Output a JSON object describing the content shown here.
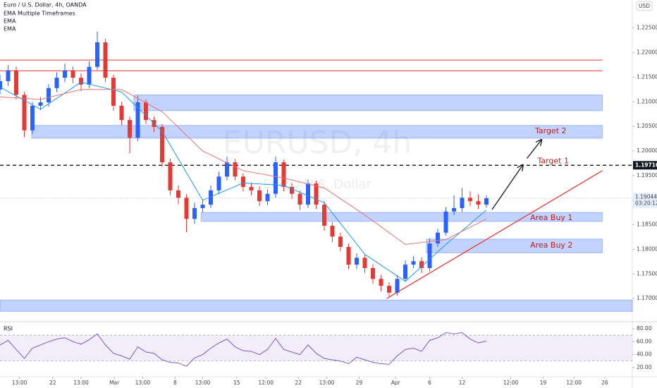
{
  "chart_data": {
    "type": "candlestick",
    "title": "Euro / U.S. Dollar, 4h, OANDA",
    "indicators": [
      "EMA Multiple Timeframes",
      "EMA",
      "EMA"
    ],
    "watermark": [
      "EURUSD, 4h",
      "Euro / U.S. Dollar"
    ],
    "currency": "USD",
    "up_color": "#2962ff",
    "down_color": "#e53935",
    "x": [
      0,
      1,
      2,
      3,
      4,
      5,
      6,
      7,
      8,
      9,
      10,
      11,
      12,
      13,
      14,
      15,
      16,
      17,
      18,
      19,
      20,
      21,
      22,
      23,
      24,
      25,
      26,
      27,
      28,
      29,
      30,
      31,
      32,
      33,
      34,
      35,
      36,
      37,
      38,
      39,
      40,
      41,
      42,
      43,
      44,
      45,
      46,
      47,
      48,
      49,
      50,
      51,
      52,
      53,
      54,
      55,
      56,
      57,
      58,
      59,
      60
    ],
    "open": [
      1.2125,
      1.2142,
      1.2164,
      1.2114,
      1.2042,
      1.2092,
      1.2099,
      1.2128,
      1.2149,
      1.2164,
      1.2149,
      1.2135,
      1.2171,
      1.2221,
      1.2149,
      1.2092,
      1.2063,
      1.2027,
      1.2099,
      1.2063,
      1.2049,
      1.1977,
      1.192,
      1.1905,
      1.1862,
      1.1884,
      1.1891,
      1.192,
      1.1948,
      1.1977,
      1.1948,
      1.1927,
      1.192,
      1.1898,
      1.1913,
      1.1977,
      1.1927,
      1.1913,
      1.1891,
      1.1934,
      1.1891,
      1.1848,
      1.1826,
      1.1805,
      1.1769,
      1.1783,
      1.1762,
      1.174,
      1.1726,
      1.1712,
      1.174,
      1.1769,
      1.1776,
      1.1762,
      1.1812,
      1.1834,
      1.1877,
      1.1884,
      1.1905,
      1.1898,
      1.1891
    ],
    "high": [
      1.2155,
      1.2175,
      1.2172,
      1.212,
      1.21,
      1.211,
      1.2136,
      1.216,
      1.2178,
      1.2172,
      1.2158,
      1.2182,
      1.2243,
      1.2228,
      1.2155,
      1.21,
      1.207,
      1.2113,
      1.2105,
      1.207,
      1.2055,
      1.1985,
      1.193,
      1.1912,
      1.1895,
      1.1902,
      1.193,
      1.1958,
      1.1989,
      1.1984,
      1.1955,
      1.1936,
      1.1928,
      1.1922,
      1.1989,
      1.1982,
      1.1935,
      1.192,
      1.1942,
      1.194,
      1.1898,
      1.1855,
      1.1834,
      1.1812,
      1.1792,
      1.179,
      1.177,
      1.1748,
      1.1733,
      1.1748,
      1.1778,
      1.1786,
      1.1784,
      1.1822,
      1.1842,
      1.1886,
      1.191,
      1.1925,
      1.1918,
      1.1912,
      1.191
    ],
    "low": [
      1.2115,
      1.2132,
      1.2105,
      1.2028,
      1.2035,
      1.2083,
      1.209,
      1.212,
      1.214,
      1.2138,
      1.2122,
      1.2128,
      1.2165,
      1.214,
      1.2082,
      1.2052,
      1.1995,
      1.202,
      1.2055,
      1.2038,
      1.1968,
      1.191,
      1.1892,
      1.1835,
      1.1852,
      1.1875,
      1.1884,
      1.1912,
      1.194,
      1.194,
      1.1918,
      1.191,
      1.1888,
      1.189,
      1.1905,
      1.1918,
      1.1902,
      1.188,
      1.1884,
      1.1882,
      1.1838,
      1.1815,
      1.1796,
      1.176,
      1.176,
      1.1752,
      1.173,
      1.1715,
      1.1704,
      1.1706,
      1.1734,
      1.1762,
      1.1752,
      1.1755,
      1.1805,
      1.1828,
      1.187,
      1.1876,
      1.1888,
      1.1882,
      1.1885
    ],
    "close": [
      1.2142,
      1.2164,
      1.2114,
      1.2042,
      1.2092,
      1.2099,
      1.2128,
      1.2149,
      1.2164,
      1.2149,
      1.2135,
      1.2171,
      1.2221,
      1.2149,
      1.2092,
      1.2063,
      1.2027,
      1.2099,
      1.2063,
      1.2049,
      1.1977,
      1.192,
      1.1905,
      1.1862,
      1.1884,
      1.1891,
      1.192,
      1.1948,
      1.1977,
      1.1948,
      1.1927,
      1.192,
      1.1898,
      1.1913,
      1.1977,
      1.1927,
      1.1913,
      1.1891,
      1.1934,
      1.1891,
      1.1848,
      1.1826,
      1.1805,
      1.1769,
      1.1783,
      1.1762,
      1.174,
      1.1726,
      1.1712,
      1.174,
      1.1769,
      1.1776,
      1.1762,
      1.1812,
      1.1834,
      1.1877,
      1.1884,
      1.1905,
      1.1898,
      1.1891,
      1.1904
    ],
    "series": [
      {
        "name": "EMA",
        "color": "#2196f3",
        "x": [
          0,
          5,
          10,
          15,
          20,
          25,
          30,
          35,
          40,
          45,
          50,
          55,
          60
        ],
        "values": [
          1.213,
          1.2085,
          1.214,
          1.212,
          1.204,
          1.19,
          1.1935,
          1.193,
          1.1895,
          1.179,
          1.1735,
          1.181,
          1.188
        ]
      },
      {
        "name": "EMA",
        "color": "#e57373",
        "x": [
          0,
          5,
          10,
          15,
          20,
          25,
          30,
          35,
          40,
          45,
          50,
          55,
          60
        ],
        "values": [
          1.211,
          1.2105,
          1.2125,
          1.2125,
          1.208,
          1.2,
          1.196,
          1.1945,
          1.1925,
          1.187,
          1.181,
          1.182,
          1.1862
        ]
      }
    ],
    "xlim": [
      0,
      78
    ],
    "xticks": [
      {
        "value": 2.4,
        "label": "13:00"
      },
      {
        "value": 6.5,
        "label": "22"
      },
      {
        "value": 10,
        "label": "13:00"
      },
      {
        "value": 14.1,
        "label": "Mar"
      },
      {
        "value": 17.6,
        "label": "13:00"
      },
      {
        "value": 21.6,
        "label": "8"
      },
      {
        "value": 25,
        "label": "13:00"
      },
      {
        "value": 29.2,
        "label": "15"
      },
      {
        "value": 32.8,
        "label": "12:00"
      },
      {
        "value": 36.8,
        "label": "22"
      },
      {
        "value": 40.3,
        "label": "13:00"
      },
      {
        "value": 44.3,
        "label": "29"
      },
      {
        "value": 48.8,
        "label": "Apr"
      },
      {
        "value": 53,
        "label": "6"
      },
      {
        "value": 57,
        "label": "12"
      },
      {
        "value": 63,
        "label": "12:00"
      },
      {
        "value": 67,
        "label": "19"
      },
      {
        "value": 70.8,
        "label": "12:00"
      },
      {
        "value": 74.6,
        "label": "26"
      }
    ],
    "ylim": [
      1.1653,
      1.2307
    ],
    "yticks": [
      {
        "value": 1.17,
        "label": "1.17000"
      },
      {
        "value": 1.175,
        "label": "1.17500"
      },
      {
        "value": 1.18,
        "label": "1.18000"
      },
      {
        "value": 1.185,
        "label": "1.18500"
      },
      {
        "value": 1.19,
        "label": "1.19000"
      },
      {
        "value": 1.195,
        "label": "1.19500"
      },
      {
        "value": 1.2,
        "label": "1.20000"
      },
      {
        "value": 1.205,
        "label": "1.20500"
      },
      {
        "value": 1.21,
        "label": "1.21000"
      },
      {
        "value": 1.215,
        "label": "1.21500"
      },
      {
        "value": 1.22,
        "label": "1.22000"
      },
      {
        "value": 1.225,
        "label": "1.22500"
      }
    ],
    "grid": false,
    "zone_color": "#2962ff",
    "zones": [
      {
        "x": [
          16.5,
          74.3
        ],
        "y": [
          1.2082,
          1.2114
        ]
      },
      {
        "x": [
          3.9,
          74.3
        ],
        "y": [
          1.2026,
          1.2052
        ]
      },
      {
        "x": [
          24.8,
          74.3
        ],
        "y": [
          1.1857,
          1.1875
        ]
      },
      {
        "x": [
          52.6,
          74.3
        ],
        "y": [
          1.1793,
          1.1821
        ]
      },
      {
        "x": [
          0,
          78
        ],
        "y": [
          1.1674,
          1.1697
        ]
      }
    ],
    "line_color": "#e53935",
    "lines": [
      {
        "value": 1.2185,
        "x": [
          0,
          74.3
        ]
      },
      {
        "value": 1.2163,
        "x": [
          0,
          74.3
        ]
      }
    ],
    "trendline": {
      "x": [
        47.7,
        74.3
      ],
      "y": [
        1.17,
        1.196
      ]
    },
    "arrows": [
      {
        "x": [
          60.7,
          64.5
        ],
        "y": [
          1.1881,
          1.1972
        ]
      },
      {
        "x": [
          65,
          66.8
        ],
        "y": [
          1.1985,
          1.2023
        ]
      }
    ],
    "dashed_level": {
      "value": 1.1971,
      "label": "1.19710"
    },
    "last_price": {
      "value": 1.19044,
      "label": "1.19044",
      "countdown": "03:20:12"
    },
    "label_color": "#b71c1c",
    "labels": [
      {
        "text": "Target 2",
        "x": 66,
        "y": 1.204
      },
      {
        "text": "Target 1",
        "x": 66.3,
        "y": 1.1979
      },
      {
        "text": "Area Buy 1",
        "x": 65.4,
        "y": 1.1864
      },
      {
        "text": "Area Buy 2",
        "x": 65.4,
        "y": 1.1808
      }
    ],
    "rsi": {
      "title": "RSI",
      "color": "#7e57c2",
      "values": [
        55,
        62,
        48,
        34,
        50,
        55,
        60,
        64,
        66,
        60,
        56,
        63,
        72,
        55,
        42,
        38,
        33,
        52,
        44,
        42,
        32,
        28,
        27,
        22,
        35,
        40,
        50,
        58,
        64,
        52,
        46,
        45,
        40,
        48,
        65,
        48,
        44,
        40,
        55,
        42,
        34,
        32,
        30,
        26,
        36,
        32,
        28,
        26,
        25,
        38,
        48,
        50,
        45,
        62,
        66,
        74,
        72,
        74,
        64,
        58,
        61
      ],
      "ylim": [
        8,
        88.7
      ],
      "yticks": [
        {
          "value": 20,
          "label": "20.00"
        },
        {
          "value": 40,
          "label": "40.00"
        },
        {
          "value": 60,
          "label": "60.00"
        },
        {
          "value": 80,
          "label": "80.00"
        }
      ],
      "band": [
        30,
        70
      ]
    }
  }
}
